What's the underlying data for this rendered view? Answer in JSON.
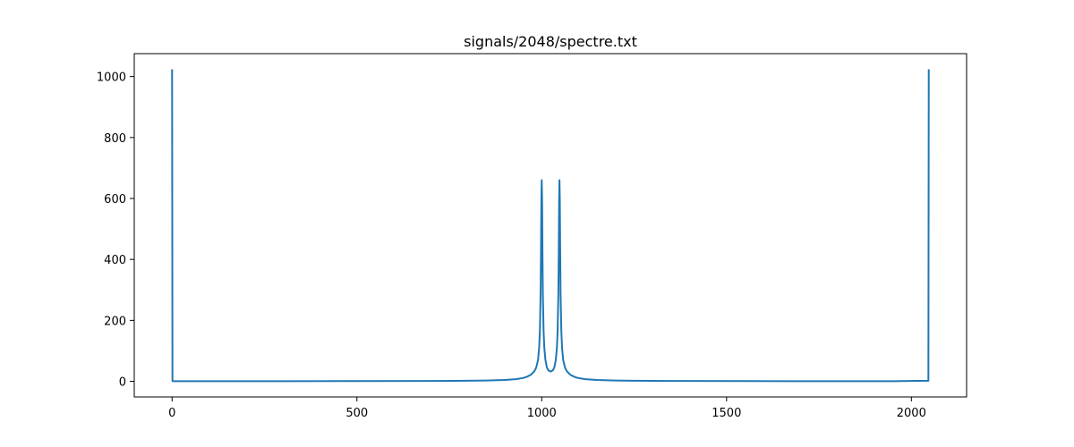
{
  "chart_data": {
    "type": "line",
    "title": "signals/2048/spectre.txt",
    "xlabel": "",
    "ylabel": "",
    "xlim": [
      -102.35,
      2149.35
    ],
    "ylim": [
      -51.2,
      1075.2
    ],
    "xticks": [
      0,
      500,
      1000,
      1500,
      2000
    ],
    "yticks": [
      0,
      200,
      400,
      600,
      800,
      1000
    ],
    "grid": false,
    "legend": "none",
    "series": [
      {
        "color": "#1f77b4",
        "x": [
          0,
          1,
          2,
          100,
          300,
          500,
          700,
          800,
          850,
          900,
          930,
          950,
          960,
          970,
          980,
          985,
          990,
          993,
          995,
          997,
          998,
          999,
          1000,
          1001,
          1002,
          1003,
          1005,
          1007,
          1010,
          1014,
          1018,
          1024,
          1030,
          1034,
          1038,
          1041,
          1043,
          1045,
          1046,
          1047,
          1048,
          1049,
          1050,
          1051,
          1053,
          1055,
          1058,
          1063,
          1068,
          1078,
          1088,
          1098,
          1118,
          1148,
          1198,
          1248,
          1348,
          1548,
          1748,
          1948,
          2046,
          2047
        ],
        "y": [
          1024,
          2,
          0.5,
          0.5,
          0.6,
          0.8,
          1.3,
          2.0,
          2.8,
          4.5,
          7.0,
          11,
          15,
          21,
          33,
          45,
          70,
          110,
          165,
          290,
          420,
          590,
          660,
          590,
          420,
          290,
          165,
          110,
          70,
          45,
          36,
          32,
          36,
          45,
          70,
          110,
          165,
          290,
          420,
          590,
          660,
          590,
          420,
          290,
          165,
          110,
          70,
          45,
          33,
          21,
          15,
          11,
          7.0,
          4.5,
          2.8,
          2.0,
          1.3,
          0.8,
          0.6,
          0.5,
          2,
          1024
        ]
      }
    ]
  }
}
